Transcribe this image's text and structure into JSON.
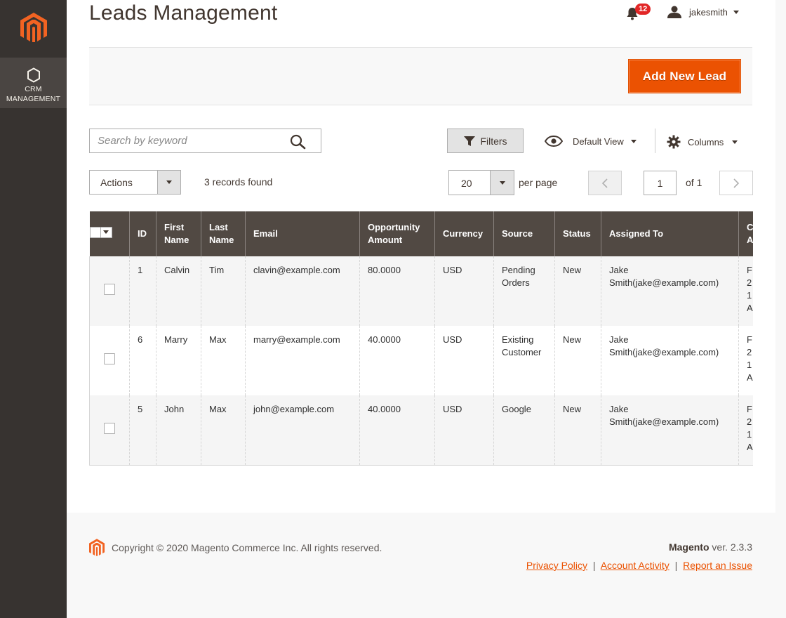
{
  "sidebar": {
    "brand_logo": "magento-logo-icon",
    "items": [
      {
        "label_line1": "CRM",
        "label_line2": "MANAGEMENT",
        "icon": "hexagon-icon",
        "active": true
      }
    ]
  },
  "header": {
    "title": "Leads Management",
    "notifications_count": "12",
    "username": "jakesmith"
  },
  "toolbar": {
    "add_button_label": "Add New Lead"
  },
  "grid_controls": {
    "search_placeholder": "Search by keyword",
    "filters_label": "Filters",
    "view_label": "Default View",
    "columns_label": "Columns",
    "actions_label": "Actions",
    "records_found": "3 records found",
    "per_page_value": "20",
    "per_page_label": "per page",
    "current_page": "1",
    "of_pages": "of 1"
  },
  "grid": {
    "columns": [
      {
        "line1": "ID",
        "line2": ""
      },
      {
        "line1": "First",
        "line2": "Name"
      },
      {
        "line1": "Last",
        "line2": "Name"
      },
      {
        "line1": "Email",
        "line2": ""
      },
      {
        "line1": "Opportunity",
        "line2": "Amount"
      },
      {
        "line1": "Currency",
        "line2": ""
      },
      {
        "line1": "Source",
        "line2": ""
      },
      {
        "line1": "Status",
        "line2": ""
      },
      {
        "line1": "Assigned To",
        "line2": ""
      },
      {
        "line1": "C",
        "line2": "A"
      }
    ],
    "rows": [
      {
        "id": "1",
        "first": "Calvin",
        "last": "Tim",
        "email": "clavin@example.com",
        "amount": "80.0000",
        "currency": "USD",
        "source_line1": "Pending",
        "source_line2": "Orders",
        "status": "New",
        "assigned_line1": "Jake",
        "assigned_line2": "Smith(jake@example.com)",
        "created": [
          "F",
          "2",
          "1",
          "A"
        ]
      },
      {
        "id": "6",
        "first": "Marry",
        "last": "Max",
        "email": "marry@example.com",
        "amount": "40.0000",
        "currency": "USD",
        "source_line1": "Existing",
        "source_line2": "Customer",
        "status": "New",
        "assigned_line1": "Jake",
        "assigned_line2": "Smith(jake@example.com)",
        "created": [
          "F",
          "2",
          "1",
          "A"
        ]
      },
      {
        "id": "5",
        "first": "John",
        "last": "Max",
        "email": "john@example.com",
        "amount": "40.0000",
        "currency": "USD",
        "source_line1": "Google",
        "source_line2": "",
        "status": "New",
        "assigned_line1": "Jake",
        "assigned_line2": "Smith(jake@example.com)",
        "created": [
          "F",
          "2",
          "1",
          "A"
        ]
      }
    ]
  },
  "footer": {
    "copyright": "Copyright © 2020 Magento Commerce Inc. All rights reserved.",
    "brand": "Magento",
    "version": " ver. 2.3.3",
    "links": [
      "Privacy Policy",
      " Account Activity",
      "Report an Issue"
    ],
    "link_separator": "|"
  },
  "colors": {
    "accent": "#eb5202",
    "sidebar_bg": "#373330",
    "grid_header_bg": "#514943"
  }
}
